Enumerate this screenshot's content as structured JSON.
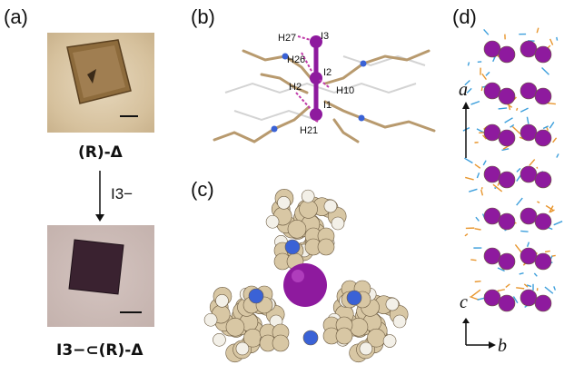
{
  "panels": {
    "a": {
      "label": "(a)",
      "caption_top": "(R)-Δ",
      "arrow_label": "I3−",
      "caption_bottom": "I3−⊂(R)-Δ"
    },
    "b": {
      "label": "(b)",
      "atoms": [
        "H27",
        "I3",
        "H26",
        "I2",
        "H2",
        "H10",
        "I1",
        "H21"
      ]
    },
    "c": {
      "label": "(c)"
    },
    "d": {
      "label": "(d)",
      "axis_a": "a",
      "axis_c": "c",
      "axis_b": "b"
    }
  },
  "colors": {
    "crystal_top_bg": "#d9c7a8",
    "crystal_top": "#8b6a3e",
    "crystal_bottom_bg": "#c9b8b4",
    "crystal_bottom": "#3a2230",
    "iodine": "#8e1a9e",
    "carbon": "#d8c7a4",
    "nitrogen": "#3a62d6",
    "hydrogen": "#f3f0e8",
    "stick": "#b89a6e",
    "blue_net": "#3d9fdc",
    "orange_net": "#e8962e"
  }
}
